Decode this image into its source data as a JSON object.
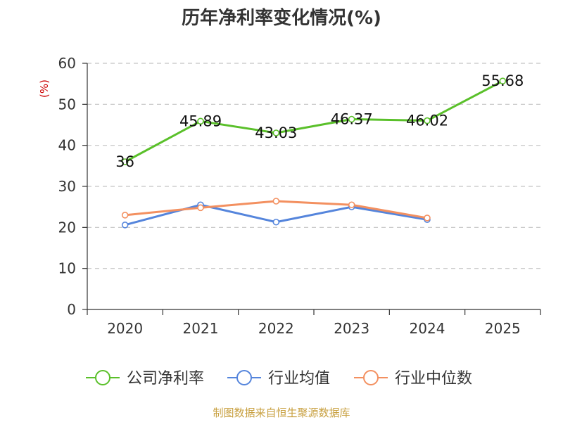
{
  "title": "历年净利率变化情况(%)",
  "source": "制图数据来自恒生聚源数据库",
  "colors": {
    "company": "#5ac02a",
    "industry_avg": "#5585dc",
    "industry_median": "#f39060"
  },
  "chart_data": {
    "type": "line",
    "title": "历年净利率变化情况(%)",
    "xlabel": "",
    "ylabel": "(%)",
    "ylim": [
      0,
      60
    ],
    "yticks": [
      0,
      10,
      20,
      30,
      40,
      50,
      60
    ],
    "grid": true,
    "legend_position": "bottom-center",
    "categories": [
      "2020",
      "2021",
      "2022",
      "2023",
      "2024",
      "2025"
    ],
    "series": [
      {
        "name": "公司净利率",
        "color": "#5ac02a",
        "values": [
          36,
          45.89,
          43.03,
          46.37,
          46.02,
          55.68
        ],
        "labels": [
          "36",
          "45.89",
          "43.03",
          "46.37",
          "46.02",
          "55.68"
        ]
      },
      {
        "name": "行业均值",
        "color": "#5585dc",
        "values": [
          20.6,
          25.5,
          21.3,
          25.0,
          21.9,
          null
        ],
        "labels": []
      },
      {
        "name": "行业中位数",
        "color": "#f39060",
        "values": [
          23.0,
          24.8,
          26.4,
          25.5,
          22.3,
          null
        ],
        "labels": []
      }
    ]
  }
}
